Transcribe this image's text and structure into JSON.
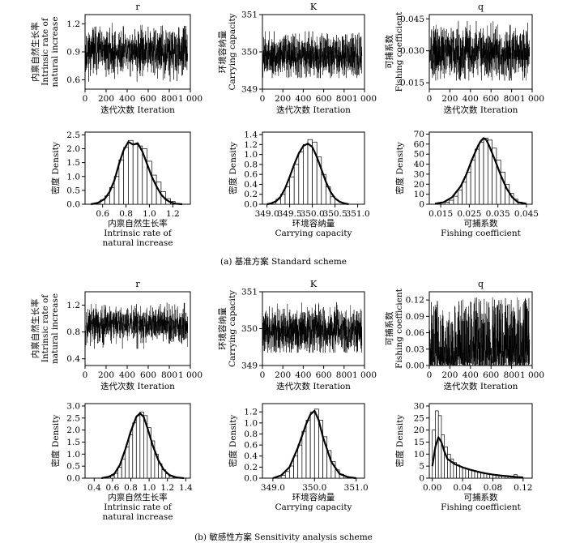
{
  "captions": {
    "a": "(a) 基准方案 Standard scheme",
    "b": "(b) 敏感性方案 Sensitivity analysis scheme"
  },
  "labels": {
    "trace_x": [
      "迭代次数 Iteration"
    ],
    "r_y": [
      "内禀自然生长率",
      "Intrinsic rate of",
      "natural increase"
    ],
    "K_y": [
      "环境容纳量",
      "Carrying capacity"
    ],
    "q_y": [
      "可捕系数",
      "Fishing coefficient"
    ],
    "density_y": [
      "密度 Density"
    ],
    "r_x": [
      "内禀自然生长率",
      "Intrinsic rate of",
      "natural increase"
    ],
    "K_x": [
      "环境容纳量",
      "Carrying capacity"
    ],
    "q_x": [
      "可捕系数",
      "Fishing coefficient"
    ]
  },
  "chart_data": [
    {
      "id": "a-r-trace",
      "type": "line",
      "title": "r",
      "xlabel": "迭代次数 Iteration",
      "ylabel": "内禀自然生长率 Intrinsic rate of natural increase",
      "xlim": [
        0,
        1000
      ],
      "ylim": [
        0.5,
        1.3
      ],
      "xticks": [
        0,
        200,
        400,
        600,
        800,
        1000
      ],
      "xticklabels": [
        "0",
        "200",
        "400",
        "600",
        "800",
        "1 000"
      ],
      "yticks": [
        0.6,
        0.9,
        1.2
      ],
      "yticklabels": [
        "0.6",
        "0.9",
        "1.2"
      ],
      "series": [
        {
          "name": "r",
          "trace": {
            "n": 1000,
            "mean": 0.9,
            "sd": 0.12,
            "lo": 0.58,
            "hi": 1.24
          }
        }
      ]
    },
    {
      "id": "a-K-trace",
      "type": "line",
      "title": "K",
      "xlabel": "迭代次数 Iteration",
      "ylabel": "环境容纳量 Carrying capacity",
      "xlim": [
        0,
        1000
      ],
      "ylim": [
        349,
        351
      ],
      "xticks": [
        0,
        200,
        400,
        600,
        800,
        1000
      ],
      "xticklabels": [
        "0",
        "200",
        "400",
        "600",
        "800",
        "1 000"
      ],
      "yticks": [
        349,
        350,
        351
      ],
      "yticklabels": [
        "349",
        "350",
        "351"
      ],
      "series": [
        {
          "name": "K",
          "trace": {
            "n": 1000,
            "mean": 349.9,
            "sd": 0.28,
            "lo": 349.3,
            "hi": 350.55
          }
        }
      ]
    },
    {
      "id": "a-q-trace",
      "type": "line",
      "title": "q",
      "xlabel": "迭代次数 Iteration",
      "ylabel": "可捕系数 Fishing coefficient",
      "xlim": [
        0,
        1000
      ],
      "ylim": [
        0.012,
        0.047
      ],
      "xticks": [
        0,
        200,
        400,
        600,
        800,
        1000
      ],
      "xticklabels": [
        "0",
        "200",
        "400",
        "600",
        "800",
        "1 000"
      ],
      "yticks": [
        0.015,
        0.03,
        0.045
      ],
      "yticklabels": [
        "0.015",
        "0.030",
        "0.045"
      ],
      "series": [
        {
          "name": "q",
          "trace": {
            "n": 1000,
            "mean": 0.029,
            "sd": 0.006,
            "lo": 0.016,
            "hi": 0.044
          }
        }
      ]
    },
    {
      "id": "a-r-density",
      "type": "bar",
      "xlabel": "内禀自然生长率 Intrinsic rate of natural increase",
      "ylabel": "密度 Density",
      "xlim": [
        0.45,
        1.35
      ],
      "ylim": [
        0,
        2.6
      ],
      "xticks": [
        0.6,
        0.8,
        1.0,
        1.2
      ],
      "xticklabels": [
        "0.6",
        "0.8",
        "1.0",
        "1.2"
      ],
      "yticks": [
        0,
        0.5,
        1.0,
        1.5,
        2.0,
        2.5
      ],
      "yticklabels": [
        "0.0",
        "0.5",
        "1.0",
        "1.5",
        "2.0",
        "2.5"
      ],
      "bin_width": 0.04,
      "bins": [
        0.58,
        0.62,
        0.66,
        0.7,
        0.74,
        0.78,
        0.82,
        0.86,
        0.9,
        0.94,
        0.98,
        1.02,
        1.06,
        1.1,
        1.14,
        1.18
      ],
      "values": [
        0.15,
        0.3,
        0.6,
        1.0,
        1.6,
        2.05,
        2.3,
        2.15,
        2.1,
        2.0,
        1.55,
        1.05,
        0.8,
        0.45,
        0.2,
        0.1
      ],
      "curve": {
        "x": [
          0.5,
          0.56,
          0.62,
          0.66,
          0.7,
          0.74,
          0.78,
          0.82,
          0.86,
          0.9,
          0.94,
          0.98,
          1.02,
          1.06,
          1.1,
          1.14,
          1.18,
          1.22,
          1.28
        ],
        "y": [
          0.0,
          0.05,
          0.2,
          0.45,
          0.85,
          1.45,
          1.95,
          2.25,
          2.15,
          2.2,
          1.9,
          1.45,
          1.0,
          0.65,
          0.35,
          0.17,
          0.07,
          0.02,
          0.0
        ]
      }
    },
    {
      "id": "a-K-density",
      "type": "bar",
      "xlabel": "环境容纳量 Carrying capacity",
      "ylabel": "密度 Density",
      "xlim": [
        348.9,
        351.15
      ],
      "ylim": [
        0,
        1.45
      ],
      "xticks": [
        349.0,
        349.5,
        350.0,
        350.5,
        351.0
      ],
      "xticklabels": [
        "349.0",
        "349.5",
        "350.0",
        "350.5",
        "351.0"
      ],
      "yticks": [
        0,
        0.2,
        0.4,
        0.6,
        0.8,
        1.0,
        1.2,
        1.4
      ],
      "yticklabels": [
        "0.0",
        "0.2",
        "0.4",
        "0.6",
        "0.8",
        "1.0",
        "1.2",
        "1.4"
      ],
      "bin_width": 0.1,
      "bins": [
        349.2,
        349.3,
        349.4,
        349.5,
        349.6,
        349.7,
        349.8,
        349.9,
        350.0,
        350.1,
        350.2,
        350.3,
        350.4
      ],
      "values": [
        0.1,
        0.2,
        0.35,
        0.55,
        0.8,
        1.05,
        1.2,
        1.3,
        1.25,
        0.95,
        0.6,
        0.35,
        0.15
      ],
      "curve": {
        "x": [
          349.0,
          349.1,
          349.2,
          349.3,
          349.4,
          349.5,
          349.6,
          349.7,
          349.8,
          349.9,
          350.0,
          350.1,
          350.2,
          350.3,
          350.4,
          350.5,
          350.6,
          350.7,
          350.8
        ],
        "y": [
          0.0,
          0.02,
          0.06,
          0.15,
          0.32,
          0.55,
          0.8,
          1.02,
          1.17,
          1.22,
          1.15,
          0.95,
          0.7,
          0.45,
          0.25,
          0.12,
          0.05,
          0.02,
          0.0
        ]
      }
    },
    {
      "id": "a-q-density",
      "type": "bar",
      "xlabel": "可捕系数 Fishing coefficient",
      "ylabel": "密度 Density",
      "xlim": [
        0.011,
        0.047
      ],
      "ylim": [
        0,
        72
      ],
      "xticks": [
        0.015,
        0.025,
        0.035,
        0.045
      ],
      "xticklabels": [
        "0.015",
        "0.025",
        "0.035",
        "0.045"
      ],
      "yticks": [
        0,
        10,
        20,
        30,
        40,
        50,
        60,
        70
      ],
      "yticklabels": [
        "0",
        "10",
        "20",
        "30",
        "40",
        "50",
        "60",
        "70"
      ],
      "bin_width": 0.0015,
      "bins": [
        0.0165,
        0.018,
        0.0195,
        0.021,
        0.0225,
        0.024,
        0.0255,
        0.027,
        0.0285,
        0.03,
        0.0315,
        0.033,
        0.0345,
        0.036,
        0.0375,
        0.039,
        0.0405,
        0.042
      ],
      "values": [
        2,
        4,
        8,
        14,
        22,
        32,
        44,
        55,
        62,
        66,
        64,
        56,
        44,
        32,
        20,
        11,
        5,
        2
      ],
      "curve": {
        "x": [
          0.013,
          0.016,
          0.019,
          0.022,
          0.024,
          0.026,
          0.028,
          0.029,
          0.03,
          0.031,
          0.032,
          0.034,
          0.036,
          0.038,
          0.04,
          0.042,
          0.045
        ],
        "y": [
          0.5,
          2,
          7,
          18,
          30,
          45,
          58,
          63,
          66,
          64,
          58,
          44,
          29,
          16,
          7,
          2,
          0.5
        ]
      }
    },
    {
      "id": "b-r-trace",
      "type": "line",
      "title": "r",
      "xlabel": "迭代次数 Iteration",
      "ylabel": "内禀自然生长率 Intrinsic rate of natural increase",
      "xlim": [
        0,
        1000
      ],
      "ylim": [
        0.3,
        1.4
      ],
      "xticks": [
        0,
        200,
        400,
        600,
        800,
        1000
      ],
      "xticklabels": [
        "0",
        "200",
        "400",
        "600",
        "800",
        "1 000"
      ],
      "yticks": [
        0.4,
        0.8,
        1.2
      ],
      "yticklabels": [
        "0.4",
        "0.8",
        "1.2"
      ],
      "series": [
        {
          "name": "r",
          "trace": {
            "n": 1000,
            "mean": 0.9,
            "sd": 0.14,
            "lo": 0.55,
            "hi": 1.3
          }
        }
      ]
    },
    {
      "id": "b-K-trace",
      "type": "line",
      "title": "K",
      "xlabel": "迭代次数 Iteration",
      "ylabel": "环境容纳量 Carrying capacity",
      "xlim": [
        0,
        1000
      ],
      "ylim": [
        349,
        351
      ],
      "xticks": [
        0,
        200,
        400,
        600,
        800,
        1000
      ],
      "xticklabels": [
        "0",
        "200",
        "400",
        "600",
        "800",
        "1 000"
      ],
      "yticks": [
        349,
        350,
        351
      ],
      "yticklabels": [
        "349",
        "350",
        "351"
      ],
      "series": [
        {
          "name": "K",
          "trace": {
            "n": 1000,
            "mean": 349.95,
            "sd": 0.3,
            "lo": 349.35,
            "hi": 350.75
          }
        }
      ]
    },
    {
      "id": "b-q-trace",
      "type": "line",
      "title": "q",
      "xlabel": "迭代次数 Iteration",
      "ylabel": "可捕系数 Fishing coefficient",
      "xlim": [
        0,
        1000
      ],
      "ylim": [
        0,
        0.135
      ],
      "xticks": [
        0,
        200,
        400,
        600,
        800,
        1000
      ],
      "xticklabels": [
        "0",
        "200",
        "400",
        "600",
        "800",
        "1 000"
      ],
      "yticks": [
        0,
        0.03,
        0.06,
        0.09,
        0.12
      ],
      "yticklabels": [
        "0.00",
        "0.03",
        "0.06",
        "0.09",
        "0.12"
      ],
      "series": [
        {
          "name": "q",
          "trace": {
            "n": 1000,
            "mean": 0.02,
            "sd": 0.025,
            "lo": 0.0,
            "hi": 0.125,
            "skew": true
          }
        }
      ]
    },
    {
      "id": "b-r-density",
      "type": "bar",
      "xlabel": "内禀自然生长率 Intrinsic rate of natural increase",
      "ylabel": "密度 Density",
      "xlim": [
        0.3,
        1.45
      ],
      "ylim": [
        0,
        3.1
      ],
      "xticks": [
        0.4,
        0.6,
        0.8,
        1.0,
        1.2,
        1.4
      ],
      "xticklabels": [
        "0.4",
        "0.6",
        "0.8",
        "1.0",
        "1.2",
        "1.4"
      ],
      "yticks": [
        0,
        0.5,
        1.0,
        1.5,
        2.0,
        2.5,
        3.0
      ],
      "yticklabels": [
        "0.0",
        "0.5",
        "1.0",
        "1.5",
        "2.0",
        "2.5",
        "3.0"
      ],
      "bin_width": 0.04,
      "bins": [
        0.54,
        0.58,
        0.62,
        0.66,
        0.7,
        0.74,
        0.78,
        0.82,
        0.86,
        0.9,
        0.94,
        0.98,
        1.02,
        1.06,
        1.1,
        1.14,
        1.18,
        1.22,
        1.26
      ],
      "values": [
        0.05,
        0.1,
        0.2,
        0.45,
        0.8,
        1.3,
        1.8,
        2.3,
        2.6,
        2.75,
        2.6,
        2.1,
        1.55,
        1.0,
        0.6,
        0.35,
        0.18,
        0.08,
        0.03
      ],
      "curve": {
        "x": [
          0.48,
          0.56,
          0.62,
          0.68,
          0.74,
          0.8,
          0.86,
          0.9,
          0.94,
          0.98,
          1.04,
          1.1,
          1.16,
          1.22,
          1.3,
          1.38
        ],
        "y": [
          0.0,
          0.06,
          0.18,
          0.55,
          1.2,
          1.95,
          2.55,
          2.7,
          2.55,
          2.1,
          1.35,
          0.75,
          0.35,
          0.13,
          0.03,
          0.0
        ]
      }
    },
    {
      "id": "b-K-density",
      "type": "bar",
      "xlabel": "环境容纳量 Carrying capacity",
      "ylabel": "密度 Density",
      "xlim": [
        348.75,
        351.2
      ],
      "ylim": [
        0,
        1.35
      ],
      "xticks": [
        349.0,
        350.0,
        351.0
      ],
      "xticklabels": [
        "349.0",
        "350.0",
        "351.0"
      ],
      "yticks": [
        0,
        0.2,
        0.4,
        0.6,
        0.8,
        1.0,
        1.2
      ],
      "yticklabels": [
        "0.0",
        "0.2",
        "0.4",
        "0.6",
        "0.8",
        "1.0",
        "1.2"
      ],
      "bin_width": 0.1,
      "bins": [
        349.2,
        349.3,
        349.4,
        349.5,
        349.6,
        349.7,
        349.8,
        349.9,
        350.0,
        350.1,
        350.2,
        350.3,
        350.4,
        350.5,
        350.6
      ],
      "values": [
        0.05,
        0.12,
        0.22,
        0.4,
        0.6,
        0.85,
        1.05,
        1.2,
        1.25,
        1.05,
        0.75,
        0.5,
        0.3,
        0.15,
        0.07
      ],
      "curve": {
        "x": [
          349.0,
          349.2,
          349.4,
          349.6,
          349.8,
          349.9,
          350.0,
          350.1,
          350.2,
          350.4,
          350.6,
          350.8,
          351.0
        ],
        "y": [
          0.0,
          0.05,
          0.2,
          0.55,
          0.98,
          1.15,
          1.22,
          1.05,
          0.75,
          0.3,
          0.08,
          0.02,
          0.0
        ]
      }
    },
    {
      "id": "b-q-density",
      "type": "bar",
      "xlabel": "可捕系数 Fishing coefficient",
      "ylabel": "密度 Density",
      "xlim": [
        -0.004,
        0.132
      ],
      "ylim": [
        0,
        31
      ],
      "xticks": [
        0,
        0.04,
        0.08,
        0.12
      ],
      "xticklabels": [
        "0.00",
        "0.04",
        "0.08",
        "0.12"
      ],
      "yticks": [
        0,
        5,
        10,
        15,
        20,
        25,
        30
      ],
      "yticklabels": [
        "0",
        "5",
        "10",
        "15",
        "20",
        "25",
        "30"
      ],
      "bin_width": 0.004,
      "bins": [
        0.0,
        0.004,
        0.008,
        0.012,
        0.016,
        0.02,
        0.024,
        0.028,
        0.032,
        0.036,
        0.04,
        0.044,
        0.048,
        0.052,
        0.056,
        0.06,
        0.064,
        0.068,
        0.072,
        0.076,
        0.08,
        0.084,
        0.088,
        0.092,
        0.096,
        0.1,
        0.104,
        0.108,
        0.112,
        0.116
      ],
      "values": [
        20,
        28,
        26,
        18,
        13,
        10,
        8,
        6.5,
        5.5,
        4.8,
        4.2,
        3.8,
        3.4,
        3.0,
        2.7,
        2.4,
        2.1,
        1.9,
        1.7,
        1.5,
        1.3,
        1.2,
        1.0,
        0.9,
        0.8,
        0.7,
        0.6,
        1.5,
        0.5,
        0.4
      ],
      "curve": {
        "x": [
          0.0,
          0.004,
          0.008,
          0.012,
          0.016,
          0.02,
          0.03,
          0.04,
          0.05,
          0.06,
          0.07,
          0.08,
          0.09,
          0.1,
          0.11,
          0.12
        ],
        "y": [
          5,
          13,
          17,
          15,
          11,
          8,
          5.8,
          4.5,
          3.5,
          2.7,
          2.0,
          1.5,
          1.1,
          0.8,
          0.5,
          0.3
        ]
      }
    }
  ]
}
